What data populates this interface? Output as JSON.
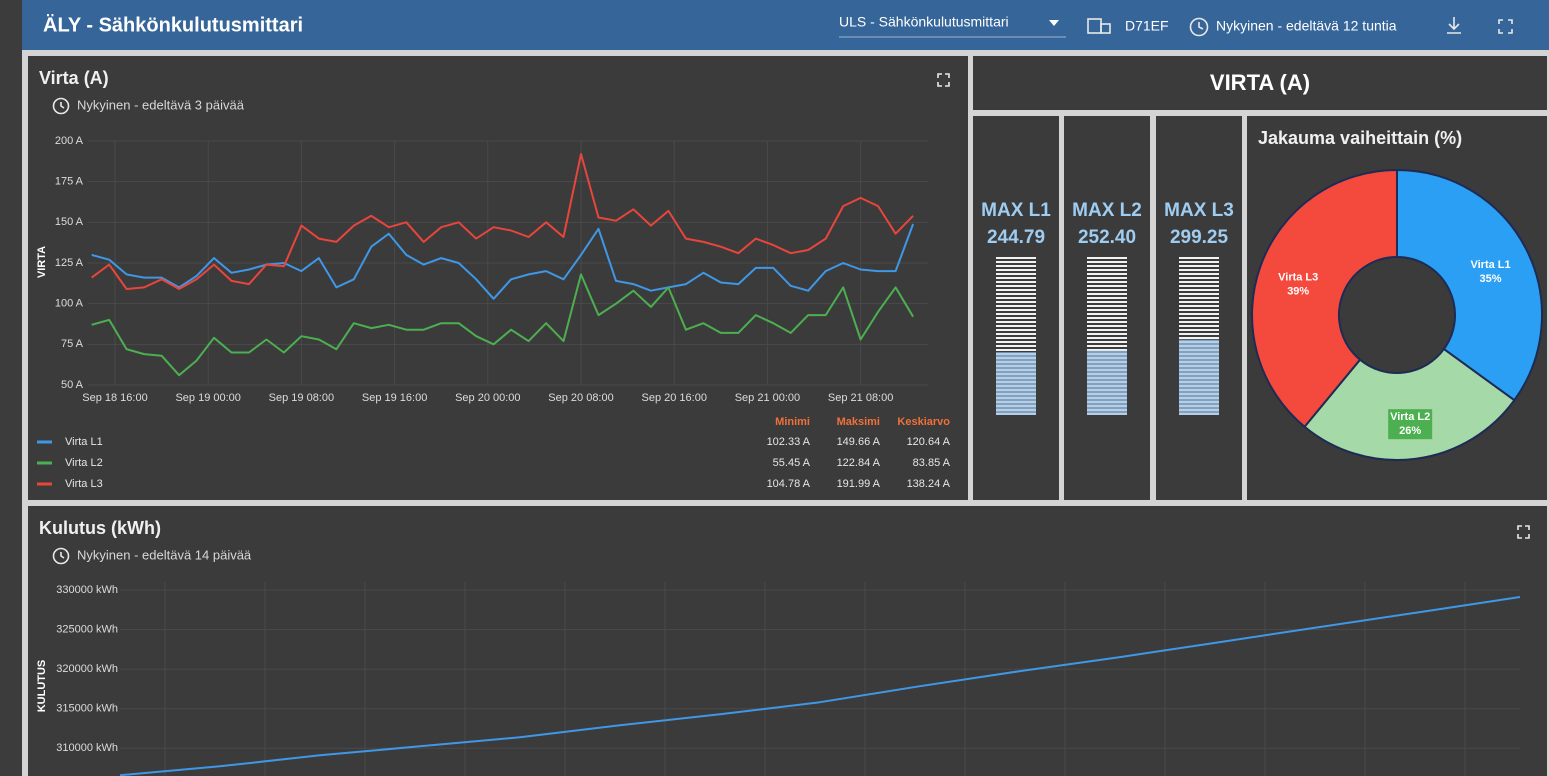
{
  "header": {
    "title": "ÄLY - Sähkönkulutusmittari",
    "dashboard": "ULS - Sähkönkulutusmittari",
    "device": "D71EF",
    "timewindow": "Nykyinen - edeltävä 12 tuntia"
  },
  "chart_data": [
    {
      "type": "line",
      "title": "Virta (A)",
      "subtitle": "Nykyinen - edeltävä 3 päivää",
      "ylabel": "VIRTA",
      "x": [
        "Sep 18 14:00",
        "Sep 18 15:30",
        "Sep 18 17:00",
        "Sep 18 18:30",
        "Sep 18 20:00",
        "Sep 18 21:30",
        "Sep 18 23:00",
        "Sep 19 00:30",
        "Sep 19 02:00",
        "Sep 19 03:30",
        "Sep 19 05:00",
        "Sep 19 06:30",
        "Sep 19 08:00",
        "Sep 19 09:30",
        "Sep 19 11:00",
        "Sep 19 12:30",
        "Sep 19 14:00",
        "Sep 19 15:30",
        "Sep 19 17:00",
        "Sep 19 18:30",
        "Sep 19 20:00",
        "Sep 19 21:30",
        "Sep 19 23:00",
        "Sep 20 00:30",
        "Sep 20 02:00",
        "Sep 20 03:30",
        "Sep 20 05:00",
        "Sep 20 06:30",
        "Sep 20 08:00",
        "Sep 20 09:30",
        "Sep 20 11:00",
        "Sep 20 12:30",
        "Sep 20 14:00",
        "Sep 20 15:30",
        "Sep 20 17:00",
        "Sep 20 18:30",
        "Sep 20 20:00",
        "Sep 20 21:30",
        "Sep 20 23:00",
        "Sep 21 00:30",
        "Sep 21 02:00",
        "Sep 21 03:30",
        "Sep 21 05:00",
        "Sep 21 06:30",
        "Sep 21 08:00",
        "Sep 21 09:30",
        "Sep 21 11:00",
        "Sep 21 12:30"
      ],
      "series": [
        {
          "name": "Virta L1",
          "color": "#3f97e6",
          "values": [
            130,
            127,
            118,
            116,
            116,
            110,
            117,
            128,
            119,
            121,
            124,
            125,
            120,
            128,
            110,
            115,
            135,
            143,
            130,
            124,
            128,
            125,
            115,
            103,
            115,
            118,
            120,
            115,
            130,
            146,
            114,
            112,
            108,
            110,
            112,
            119,
            113,
            112,
            122,
            122,
            111,
            108,
            120,
            125,
            121,
            120,
            120,
            149
          ]
        },
        {
          "name": "Virta L2",
          "color": "#4caf50",
          "values": [
            87,
            90,
            72,
            69,
            68,
            56,
            65,
            79,
            70,
            70,
            78,
            70,
            80,
            78,
            72,
            88,
            85,
            87,
            84,
            84,
            88,
            88,
            80,
            75,
            84,
            77,
            88,
            77,
            118,
            93,
            100,
            108,
            98,
            110,
            84,
            88,
            82,
            82,
            93,
            88,
            82,
            93,
            93,
            110,
            78,
            95,
            110,
            92
          ]
        },
        {
          "name": "Virta L3",
          "color": "#e8453c",
          "values": [
            116,
            124,
            109,
            110,
            115,
            109,
            115,
            124,
            114,
            112,
            124,
            123,
            148,
            140,
            138,
            148,
            154,
            147,
            150,
            138,
            147,
            150,
            140,
            147,
            145,
            141,
            150,
            141,
            192,
            153,
            151,
            158,
            148,
            157,
            140,
            138,
            135,
            131,
            140,
            136,
            131,
            133,
            140,
            160,
            165,
            160,
            143,
            154
          ]
        }
      ],
      "xlim": [
        "Sep 18 13:40",
        "Sep 21 13:50"
      ],
      "xticks": [
        "Sep 18 16:00",
        "Sep 19 00:00",
        "Sep 19 08:00",
        "Sep 19 16:00",
        "Sep 20 00:00",
        "Sep 20 08:00",
        "Sep 20 16:00",
        "Sep 21 00:00",
        "Sep 21 08:00"
      ],
      "ylim": [
        50,
        200
      ],
      "yticks": [
        {
          "value": 50,
          "label": "50 A"
        },
        {
          "value": 75,
          "label": "75 A"
        },
        {
          "value": 100,
          "label": "100 A"
        },
        {
          "value": 125,
          "label": "125 A"
        },
        {
          "value": 150,
          "label": "150 A"
        },
        {
          "value": 175,
          "label": "175 A"
        },
        {
          "value": 200,
          "label": "200 A"
        }
      ],
      "grid": true
    },
    {
      "type": "pie",
      "title": "Jakauma vaiheittain (%)",
      "categories": [
        "Virta L1",
        "Virta L2",
        "Virta L3"
      ],
      "values": [
        35,
        26,
        39
      ],
      "value_labels": [
        "35%",
        "26%",
        "39%"
      ],
      "colors": [
        "#2b9ff3",
        "#a5d9a7",
        "#f44a3d"
      ]
    },
    {
      "type": "line",
      "title": "Kulutus (kWh)",
      "subtitle": "Nykyinen - edeltävä 14 päivää",
      "ylabel": "KULUTUS",
      "categories": [
        null,
        null,
        null,
        null,
        null,
        null,
        null,
        null,
        null,
        null,
        null,
        null,
        null,
        null,
        null
      ],
      "values": [
        306600,
        307720,
        309110,
        310250,
        311390,
        312910,
        314300,
        315820,
        317850,
        319750,
        321520,
        323420,
        325320,
        327210,
        329110
      ],
      "color": "#3f97e6",
      "ylim": [
        306500,
        330000
      ],
      "yticks": [
        {
          "value": 310000,
          "label": "310000 kWh"
        },
        {
          "value": 315000,
          "label": "315000 kWh"
        },
        {
          "value": 320000,
          "label": "320000 kWh"
        },
        {
          "value": 325000,
          "label": "325000 kWh"
        },
        {
          "value": 330000,
          "label": "330000 kWh"
        }
      ],
      "grid": true
    }
  ],
  "legend_table": {
    "columns": [
      "Minimi",
      "Maksimi",
      "Keskiarvo"
    ],
    "rows": [
      [
        "102.33 A",
        "149.66 A",
        "120.64 A"
      ],
      [
        "55.45 A",
        "122.84 A",
        "83.85 A"
      ],
      [
        "104.78 A",
        "191.99 A",
        "138.24 A"
      ]
    ]
  },
  "gauges": {
    "title": "VIRTA (A)",
    "items": [
      {
        "label": "MAX L1",
        "value": "244.79",
        "level": 40
      },
      {
        "label": "MAX L2",
        "value": "252.40",
        "level": 41
      },
      {
        "label": "MAX L3",
        "value": "299.25",
        "level": 48
      }
    ]
  }
}
